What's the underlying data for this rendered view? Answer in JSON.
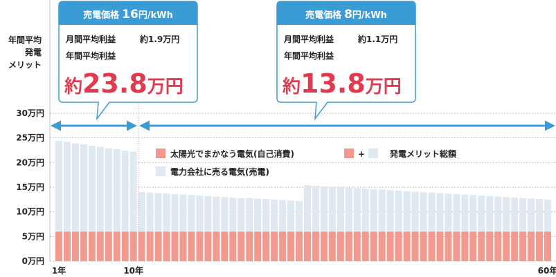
{
  "chart_data": {
    "type": "stacked_bar",
    "y_label": [
      "年間平均",
      "発電",
      "メリット"
    ],
    "categories": [
      "1年",
      null,
      null,
      null,
      null,
      null,
      null,
      null,
      null,
      "10年",
      null,
      null,
      null,
      null,
      null,
      null,
      null,
      null,
      null,
      null,
      null,
      null,
      null,
      null,
      null,
      null,
      null,
      null,
      null,
      null,
      null,
      null,
      null,
      null,
      null,
      null,
      null,
      null,
      null,
      null,
      null,
      null,
      null,
      null,
      null,
      null,
      null,
      null,
      null,
      null,
      null,
      null,
      null,
      null,
      null,
      null,
      null,
      null,
      null,
      "60年"
    ],
    "series": [
      {
        "name": "太陽光でまかなう電気(自己消費)",
        "color": "#f29a90",
        "values": [
          6,
          6,
          6,
          6,
          6,
          6,
          6,
          6,
          6,
          6,
          6,
          6,
          6,
          6,
          6,
          6,
          6,
          6,
          6,
          6,
          6,
          6,
          6,
          6,
          6,
          6,
          6,
          6,
          6,
          6,
          6,
          6,
          6,
          6,
          6,
          6,
          6,
          6,
          6,
          6,
          6,
          6,
          6,
          6,
          6,
          6,
          6,
          6,
          6,
          6,
          6,
          6,
          6,
          6,
          6,
          6,
          6,
          6,
          6,
          6
        ]
      },
      {
        "name": "電力会社に売る電気(売電)",
        "color": "#dfe9f1",
        "values": [
          18.4,
          18.2,
          17.9,
          17.7,
          17.4,
          17.2,
          16.9,
          16.7,
          16.4,
          16.2,
          8.0,
          7.9,
          7.8,
          7.7,
          7.6,
          7.5,
          7.4,
          7.3,
          7.2,
          7.1,
          7.0,
          6.9,
          6.8,
          6.8,
          6.7,
          6.6,
          6.5,
          6.4,
          6.3,
          6.2,
          9.4,
          9.3,
          9.2,
          9.1,
          9.0,
          8.9,
          8.8,
          8.7,
          8.6,
          8.5,
          8.4,
          8.3,
          8.2,
          8.1,
          8.0,
          7.9,
          7.8,
          7.7,
          7.6,
          7.5,
          7.4,
          7.3,
          7.2,
          7.1,
          7.0,
          6.9,
          6.8,
          6.7,
          6.6,
          6.5
        ]
      }
    ],
    "legend_total": {
      "plus": "+",
      "label": "発電メリット総額"
    },
    "ylim": [
      0,
      30
    ],
    "yticks": [
      {
        "value": 0,
        "label": "0万円"
      },
      {
        "value": 5,
        "label": "5万円"
      },
      {
        "value": 10,
        "label": "10万円"
      },
      {
        "value": 15,
        "label": "15万円"
      },
      {
        "value": 20,
        "label": "20万円"
      },
      {
        "value": 25,
        "label": "25万円"
      },
      {
        "value": 30,
        "label": "30万円"
      }
    ],
    "grid": true,
    "callouts": [
      {
        "header_label": "売電価格",
        "rate": 16,
        "rate_unit": "円/kWh",
        "monthly_label": "月間平均利益",
        "monthly_value": "約1.9万円",
        "annual_label": "年間平均利益",
        "annual_prefix": "約",
        "annual_value": 23.8,
        "annual_unit": "万円"
      },
      {
        "header_label": "売電価格",
        "rate": 8,
        "rate_unit": "円/kWh",
        "monthly_label": "月間平均利益",
        "monthly_value": "約1.1万円",
        "annual_label": "年間平均利益",
        "annual_prefix": "約",
        "annual_value": 13.8,
        "annual_unit": "万円"
      }
    ]
  }
}
